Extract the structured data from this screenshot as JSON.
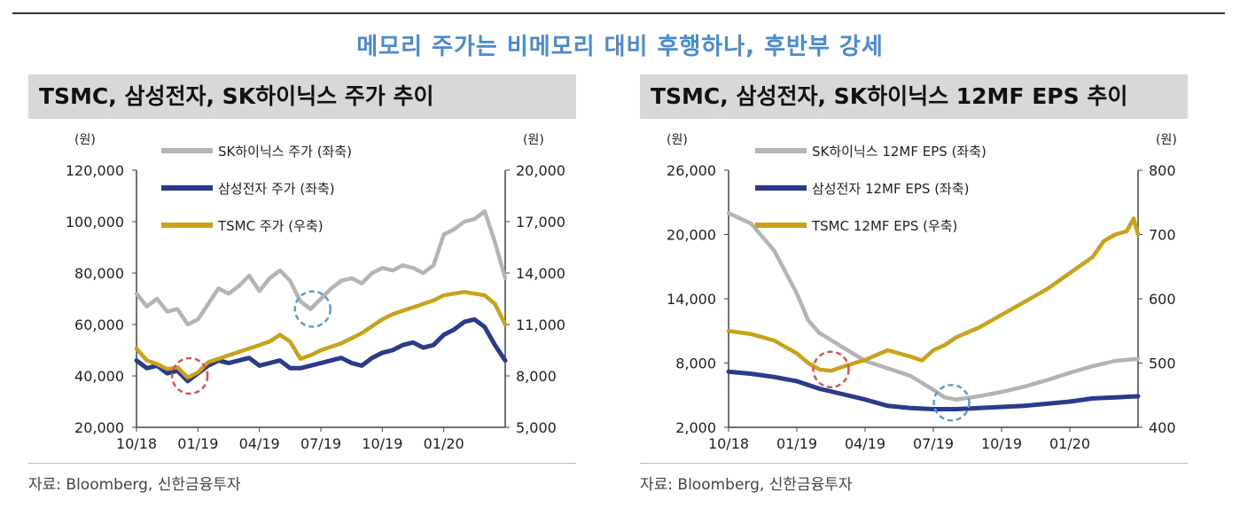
{
  "headline": "메모리 주가는 비메모리 대비 후행하나, 후반부 강세",
  "colors": {
    "gray": "#b4b4b4",
    "navy": "#2b3a8a",
    "gold": "#c9a21a",
    "red": "#e05050",
    "blue": "#5b9bd5",
    "headline": "#4a8ad0"
  },
  "chart_data": [
    {
      "type": "line",
      "title": "TSMC, 삼성전자, SK하이닉스 주가 추이",
      "y_left_unit": "(원)",
      "y_right_unit": "(원)",
      "y_left_range": [
        20000,
        120000
      ],
      "y_right_range": [
        5000,
        20000
      ],
      "y_left_ticks": [
        "120,000",
        "100,000",
        "80,000",
        "60,000",
        "40,000",
        "20,000"
      ],
      "y_right_ticks": [
        "20,000",
        "17,000",
        "14,000",
        "11,000",
        "8,000",
        "5,000"
      ],
      "x_ticks": [
        "10/18",
        "01/19",
        "04/19",
        "07/19",
        "10/19",
        "01/20"
      ],
      "x_range": [
        0,
        18
      ],
      "series": [
        {
          "name": "SK하이닉스 주가 (좌축)",
          "axis": "left",
          "color": "#b4b4b4",
          "x": [
            0,
            0.5,
            1,
            1.5,
            2,
            2.5,
            3,
            3.5,
            4,
            4.5,
            5,
            5.5,
            6,
            6.5,
            7,
            7.5,
            8,
            8.5,
            9,
            9.5,
            10,
            10.5,
            11,
            11.5,
            12,
            12.5,
            13,
            13.5,
            14,
            14.5,
            15,
            15.5,
            16,
            16.5,
            17,
            17.5,
            18
          ],
          "y": [
            72000,
            67000,
            70000,
            65000,
            66000,
            60000,
            62000,
            68000,
            74000,
            72000,
            75000,
            79000,
            73000,
            78000,
            81000,
            77000,
            69000,
            66000,
            70000,
            74000,
            77000,
            78000,
            76000,
            80000,
            82000,
            81000,
            83000,
            82000,
            80000,
            83000,
            95000,
            97000,
            100000,
            101000,
            104000,
            92000,
            78000
          ]
        },
        {
          "name": "삼성전자 주가 (좌축)",
          "axis": "left",
          "color": "#2b3a8a",
          "x": [
            0,
            0.5,
            1,
            1.5,
            2,
            2.5,
            3,
            3.5,
            4,
            4.5,
            5,
            5.5,
            6,
            6.5,
            7,
            7.5,
            8,
            8.5,
            9,
            9.5,
            10,
            10.5,
            11,
            11.5,
            12,
            12.5,
            13,
            13.5,
            14,
            14.5,
            15,
            15.5,
            16,
            16.5,
            17,
            17.5,
            18
          ],
          "y": [
            46000,
            43000,
            44000,
            41000,
            42000,
            38000,
            41000,
            44000,
            46000,
            45000,
            46000,
            47000,
            44000,
            45000,
            46000,
            43000,
            43000,
            44000,
            45000,
            46000,
            47000,
            45000,
            44000,
            47000,
            49000,
            50000,
            52000,
            53000,
            51000,
            52000,
            56000,
            58000,
            61000,
            62000,
            59000,
            52000,
            46000
          ]
        },
        {
          "name": "TSMC 주가 (우축)",
          "axis": "right",
          "color": "#c9a21a",
          "x": [
            0,
            0.5,
            1,
            1.5,
            2,
            2.5,
            3,
            3.5,
            4,
            4.5,
            5,
            5.5,
            6,
            6.5,
            7,
            7.5,
            8,
            8.5,
            9,
            9.5,
            10,
            10.5,
            11,
            11.5,
            12,
            12.5,
            13,
            13.5,
            14,
            14.5,
            15,
            15.5,
            16,
            16.5,
            17,
            17.5,
            18
          ],
          "y": [
            9600,
            8900,
            8700,
            8400,
            8500,
            7900,
            8200,
            8800,
            9000,
            9200,
            9400,
            9600,
            9800,
            10000,
            10400,
            10000,
            9000,
            9200,
            9500,
            9700,
            9900,
            10200,
            10500,
            10900,
            11300,
            11600,
            11800,
            12000,
            12200,
            12400,
            12700,
            12800,
            12900,
            12800,
            12700,
            12200,
            11000
          ]
        }
      ],
      "annotations": [
        {
          "kind": "circle",
          "color": "red",
          "x": 2.6,
          "y": 40000,
          "axis": "left"
        },
        {
          "kind": "circle",
          "color": "blue",
          "x": 8.6,
          "y": 66000,
          "axis": "left"
        }
      ]
    },
    {
      "type": "line",
      "title": "TSMC, 삼성전자, SK하이닉스 12MF EPS 추이",
      "y_left_unit": "(원)",
      "y_right_unit": "(원)",
      "y_left_range": [
        2000,
        26000
      ],
      "y_right_range": [
        400,
        800
      ],
      "y_left_ticks": [
        "26,000",
        "20,000",
        "14,000",
        "8,000",
        "2,000"
      ],
      "y_right_ticks": [
        "800",
        "700",
        "600",
        "500",
        "400"
      ],
      "x_ticks": [
        "10/18",
        "01/19",
        "04/19",
        "07/19",
        "10/19",
        "01/20"
      ],
      "x_range": [
        0,
        18
      ],
      "series": [
        {
          "name": "SK하이닉스 12MF EPS (좌축)",
          "axis": "left",
          "color": "#b4b4b4",
          "x": [
            0,
            1,
            2,
            2.5,
            3,
            3.5,
            4,
            5,
            6,
            7,
            8,
            9,
            9.5,
            10,
            11,
            12,
            13,
            14,
            15,
            16,
            17,
            18
          ],
          "y": [
            22000,
            21000,
            18500,
            16500,
            14500,
            12000,
            10800,
            9500,
            8200,
            7500,
            6800,
            5500,
            4800,
            4600,
            4900,
            5300,
            5800,
            6400,
            7100,
            7700,
            8200,
            8400
          ]
        },
        {
          "name": "삼성전자 12MF EPS (좌축)",
          "axis": "left",
          "color": "#2b3a8a",
          "x": [
            0,
            1,
            2,
            3,
            4,
            5,
            6,
            7,
            8,
            9,
            10,
            11,
            12,
            13,
            14,
            15,
            16,
            17,
            18
          ],
          "y": [
            7200,
            7000,
            6700,
            6300,
            5600,
            5100,
            4600,
            4000,
            3800,
            3700,
            3700,
            3800,
            3900,
            4000,
            4200,
            4400,
            4700,
            4800,
            4900
          ]
        },
        {
          "name": "TSMC 12MF EPS (우축)",
          "axis": "right",
          "color": "#c9a21a",
          "x": [
            0,
            1,
            2,
            3,
            3.5,
            4,
            4.5,
            5,
            6,
            7,
            8,
            8.5,
            9,
            9.5,
            10,
            11,
            12,
            13,
            14,
            15,
            16,
            16.5,
            17,
            17.5,
            17.8,
            18
          ],
          "y": [
            550,
            545,
            535,
            515,
            500,
            490,
            488,
            494,
            505,
            520,
            510,
            504,
            520,
            528,
            540,
            555,
            575,
            595,
            615,
            640,
            665,
            690,
            700,
            705,
            725,
            700
          ]
        }
      ],
      "annotations": [
        {
          "kind": "circle",
          "color": "red",
          "x": 4.5,
          "y": 490,
          "axis": "right"
        },
        {
          "kind": "circle",
          "color": "blue",
          "x": 9.8,
          "y": 4300,
          "axis": "left"
        }
      ]
    }
  ],
  "source": "자료: Bloomberg, 신한금융투자"
}
